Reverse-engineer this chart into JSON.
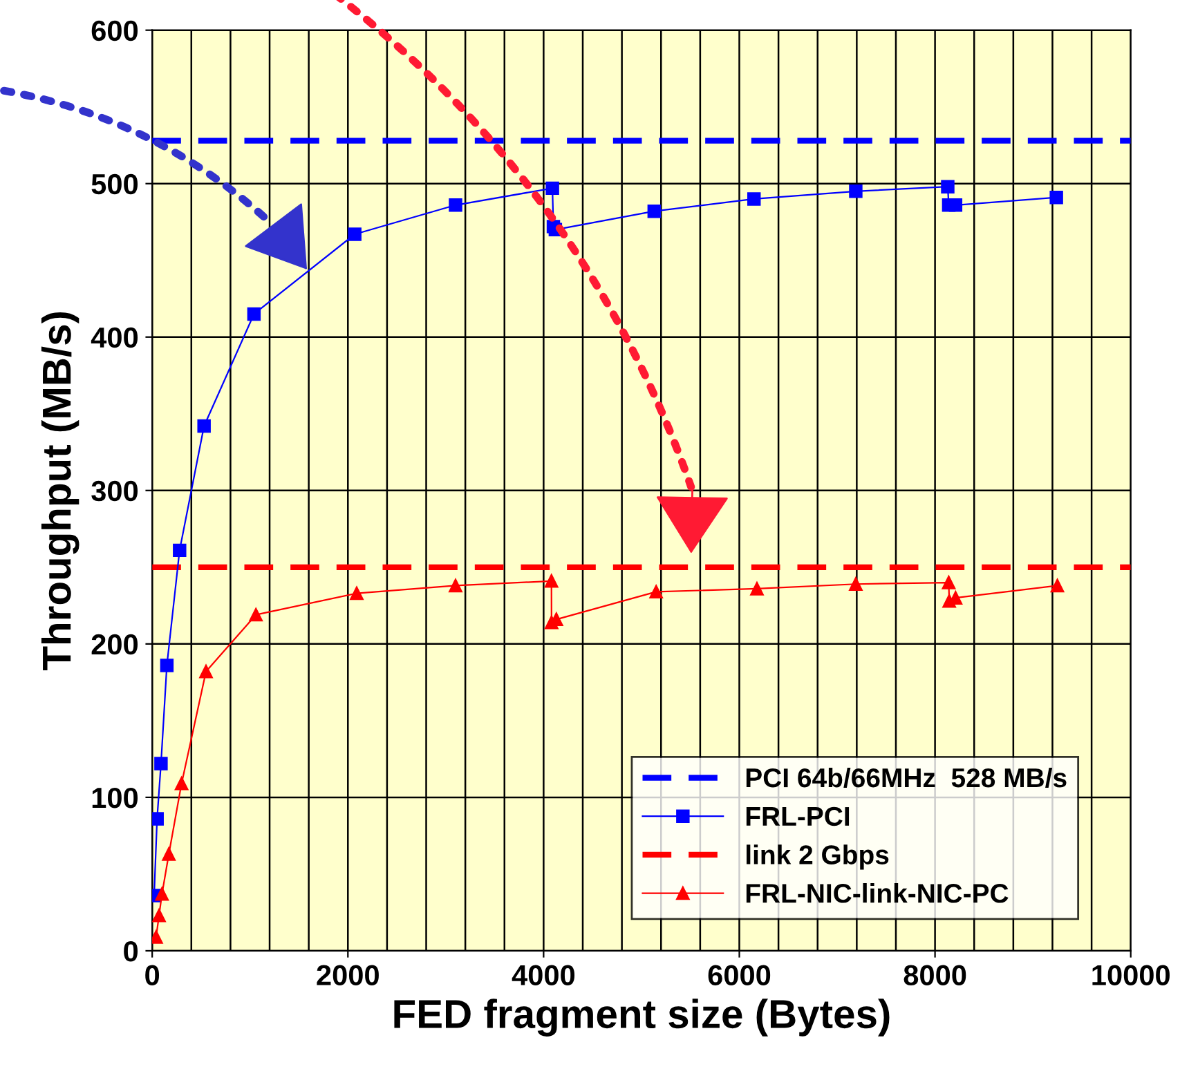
{
  "chart_data": {
    "type": "line",
    "xlabel": "FED fragment size (Bytes)",
    "ylabel": "Throughput (MB/s)",
    "xlim": [
      0,
      10000
    ],
    "xticks": [
      0,
      2000,
      4000,
      6000,
      8000,
      10000
    ],
    "ylim": [
      0,
      600
    ],
    "yticks": [
      0,
      100,
      200,
      300,
      400,
      500,
      600
    ],
    "grid": true,
    "legend": "bottom right",
    "ref_lines": [
      {
        "axis": "y",
        "value": 528,
        "label": "PCI 64b/66MHz  528 MB/s",
        "color": "#0000ff",
        "line_style": "dashed"
      },
      {
        "axis": "y",
        "value": 250,
        "label": "link 2 Gbps",
        "color": "#ff0000",
        "line_style": "dashed"
      }
    ],
    "series": [
      {
        "name": "FRL-PCI",
        "color": "#0000ff",
        "marker": "square",
        "x": [
          20,
          50,
          90,
          150,
          280,
          530,
          1040,
          2070,
          3100,
          4090,
          4100,
          4120,
          5130,
          6150,
          7190,
          8130,
          8140,
          8210,
          9240
        ],
        "values": [
          36,
          86,
          122,
          186,
          261,
          342,
          415,
          467,
          486,
          497,
          472,
          470,
          482,
          490,
          495,
          498,
          486,
          486,
          491
        ]
      },
      {
        "name": "FRL-NIC-link-NIC-PC",
        "color": "#ff0000",
        "marker": "triangle",
        "x": [
          40,
          70,
          100,
          170,
          300,
          550,
          1060,
          2090,
          3100,
          4080,
          4081,
          4130,
          5150,
          6180,
          7190,
          8140,
          8145,
          8210,
          9250
        ],
        "values": [
          9,
          23,
          37,
          63,
          109,
          182,
          219,
          233,
          238,
          241,
          214,
          216,
          234,
          236,
          239,
          240,
          228,
          230,
          238
        ]
      }
    ]
  }
}
